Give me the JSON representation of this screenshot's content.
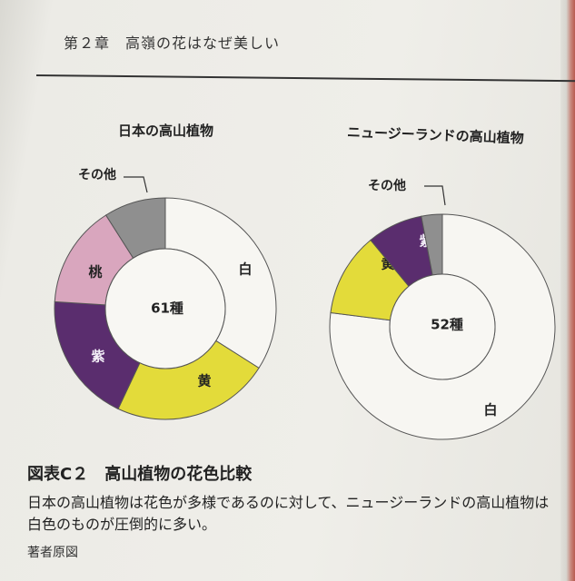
{
  "header": {
    "chapter": "第２章　高嶺の花はなぜ美しい"
  },
  "chart_data": [
    {
      "type": "pie",
      "style": "donut",
      "title": "日本の高山植物",
      "center_label": "61種",
      "slices": [
        {
          "label": "白",
          "value": 34,
          "color": "#f7f6f2"
        },
        {
          "label": "黄",
          "value": 23,
          "color": "#e3db3a"
        },
        {
          "label": "紫",
          "value": 19,
          "color": "#5a2d6e"
        },
        {
          "label": "桃",
          "value": 15,
          "color": "#d9a6be"
        },
        {
          "label": "その他",
          "value": 9,
          "color": "#8f8f8f"
        }
      ]
    },
    {
      "type": "pie",
      "style": "donut",
      "title": "ニュージーランドの高山植物",
      "center_label": "52種",
      "slices": [
        {
          "label": "白",
          "value": 77,
          "color": "#f7f6f2"
        },
        {
          "label": "黄",
          "value": 12,
          "color": "#e3db3a"
        },
        {
          "label": "紫",
          "value": 8,
          "color": "#5a2d6e"
        },
        {
          "label": "その他",
          "value": 3,
          "color": "#8f8f8f"
        }
      ]
    }
  ],
  "figure": {
    "title": "図表C２　高山植物の花色比較",
    "caption": "日本の高山植物は花色が多様であるのに対して、ニュージーランドの高山植物は白色のものが圧倒的に多い。",
    "credit": "著者原図"
  }
}
